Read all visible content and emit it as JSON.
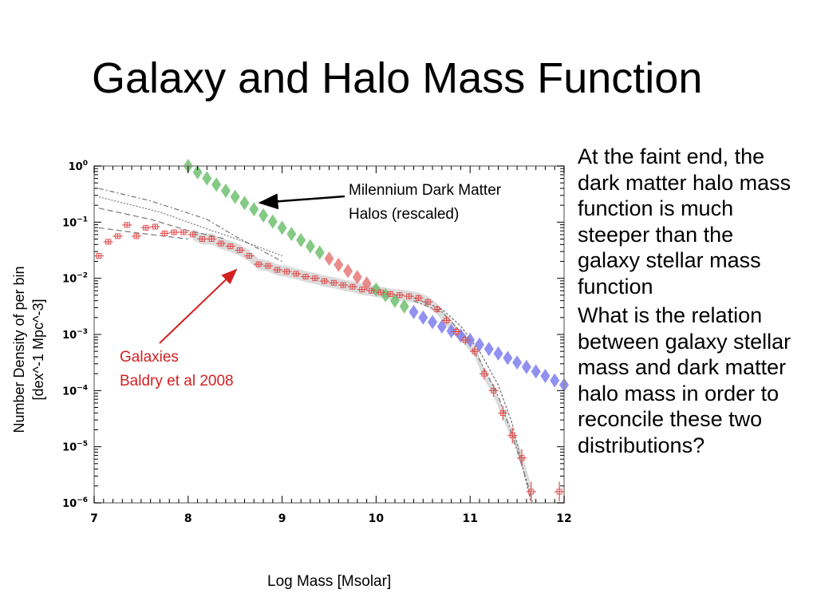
{
  "slide": {
    "title": "Galaxy and Halo Mass Function",
    "bullets": [
      [
        "At the faint end, the",
        "dark matter halo mass",
        "function is much",
        "steeper than the",
        "galaxy stellar mass",
        "function"
      ],
      [
        "What is the relation",
        "between galaxy stellar",
        "mass and dark matter",
        "halo mass in order to",
        "reconcile these two",
        "distributions?"
      ]
    ]
  },
  "chart_data": {
    "type": "scatter",
    "xlabel": "Log Mass [Msolar]",
    "ylabel_lines": [
      "Number Density of per bin",
      "[dex^-1 Mpc^-3]"
    ],
    "xlim": [
      7,
      12
    ],
    "ylim_log10": [
      -6,
      0
    ],
    "yscale": "log",
    "x_ticks": [
      "7",
      "8",
      "9",
      "10",
      "11",
      "12"
    ],
    "y_ticks": [
      {
        "base": "10",
        "exp": "0"
      },
      {
        "base": "10",
        "exp": "−1"
      },
      {
        "base": "10",
        "exp": "−2"
      },
      {
        "base": "10",
        "exp": "−3"
      },
      {
        "base": "10",
        "exp": "−4"
      },
      {
        "base": "10",
        "exp": "−5"
      },
      {
        "base": "10",
        "exp": "−6"
      }
    ],
    "annotations": [
      {
        "lines": [
          "Milennium Dark Matter",
          "Halos  (rescaled)"
        ],
        "color": "#000000"
      },
      {
        "lines": [
          "Galaxies",
          "Baldry et al 2008"
        ],
        "color": "#d42020"
      }
    ],
    "halos": {
      "x": [
        8.0,
        8.1,
        8.2,
        8.3,
        8.4,
        8.5,
        8.6,
        8.7,
        8.8,
        8.9,
        9.0,
        9.1,
        9.2,
        9.3,
        9.4,
        9.5,
        9.6,
        9.7,
        9.8,
        9.9,
        10.0,
        10.1,
        10.2,
        10.3,
        10.4,
        10.5,
        10.6,
        10.7,
        10.8,
        10.9,
        11.0,
        11.1,
        11.2,
        11.3,
        11.4,
        11.5,
        11.6,
        11.7,
        11.8,
        11.9,
        12.0
      ],
      "log_y": [
        0.0,
        -0.11,
        -0.22,
        -0.33,
        -0.44,
        -0.55,
        -0.66,
        -0.77,
        -0.88,
        -0.99,
        -1.1,
        -1.21,
        -1.32,
        -1.43,
        -1.54,
        -1.65,
        -1.76,
        -1.87,
        -1.98,
        -2.09,
        -2.2,
        -2.3,
        -2.4,
        -2.5,
        -2.6,
        -2.7,
        -2.78,
        -2.86,
        -2.94,
        -3.02,
        -3.1,
        -3.18,
        -3.26,
        -3.34,
        -3.42,
        -3.5,
        -3.58,
        -3.66,
        -3.74,
        -3.82,
        -3.9
      ],
      "colors": {
        "low": "#6fbf6f",
        "mid": "#e87878",
        "high": "#7e7ef0"
      }
    },
    "galaxies": {
      "color": "#e05050",
      "x": [
        7.05,
        7.15,
        7.25,
        7.35,
        7.45,
        7.55,
        7.65,
        7.75,
        7.85,
        7.95,
        8.05,
        8.15,
        8.25,
        8.35,
        8.45,
        8.55,
        8.65,
        8.75,
        8.85,
        8.95,
        9.05,
        9.15,
        9.25,
        9.35,
        9.45,
        9.55,
        9.65,
        9.75,
        9.85,
        9.95,
        10.05,
        10.15,
        10.25,
        10.35,
        10.45,
        10.55,
        10.65,
        10.75,
        10.85,
        10.95,
        11.05,
        11.15,
        11.25,
        11.35,
        11.45,
        11.55,
        11.65,
        11.95
      ],
      "log_y": [
        -1.6,
        -1.35,
        -1.25,
        -1.05,
        -1.25,
        -1.1,
        -1.08,
        -1.2,
        -1.18,
        -1.18,
        -1.22,
        -1.3,
        -1.3,
        -1.38,
        -1.43,
        -1.5,
        -1.6,
        -1.75,
        -1.78,
        -1.85,
        -1.88,
        -1.92,
        -1.97,
        -2.0,
        -2.05,
        -2.08,
        -2.12,
        -2.15,
        -2.2,
        -2.22,
        -2.25,
        -2.28,
        -2.3,
        -2.32,
        -2.35,
        -2.42,
        -2.55,
        -2.75,
        -2.95,
        -3.1,
        -3.3,
        -3.7,
        -4.0,
        -4.4,
        -4.8,
        -5.2,
        -5.8,
        -5.8
      ]
    }
  }
}
